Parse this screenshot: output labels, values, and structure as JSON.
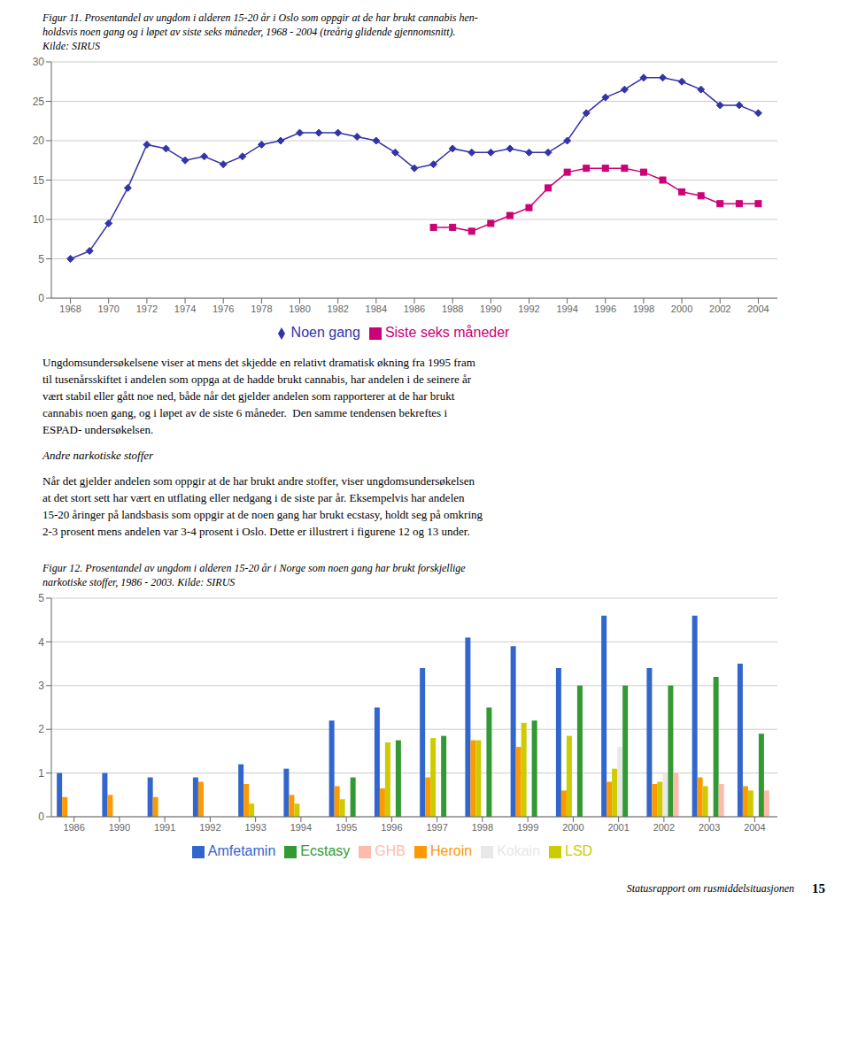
{
  "chart_data": [
    {
      "type": "line",
      "title": "Figur 11. Prosentandel av ungdom i alderen 15-20 år i Oslo som oppgir at de har brukt cannabis hen-\nholdsvis noen gang og i løpet av siste seks måneder, 1968 - 2004 (treårig glidende gjennomsnitt).",
      "subtitle": "Kilde: SIRUS",
      "x": [
        1968,
        1969,
        1970,
        1971,
        1972,
        1973,
        1974,
        1975,
        1976,
        1977,
        1978,
        1979,
        1980,
        1981,
        1982,
        1983,
        1984,
        1985,
        1986,
        1987,
        1988,
        1989,
        1990,
        1991,
        1992,
        1993,
        1994,
        1995,
        1996,
        1997,
        1998,
        1999,
        2000,
        2001,
        2002,
        2003,
        2004
      ],
      "series": [
        {
          "name": "Noen gang",
          "color": "#3333aa",
          "marker": "diamond",
          "values": [
            5.0,
            6.0,
            9.5,
            14.0,
            19.5,
            19.0,
            17.5,
            18.0,
            17.0,
            18.0,
            19.5,
            20.0,
            21.0,
            21.0,
            21.0,
            20.5,
            20.0,
            18.5,
            16.5,
            17.0,
            19.0,
            18.5,
            18.5,
            19.0,
            18.5,
            18.5,
            20.0,
            23.5,
            25.5,
            26.5,
            28.0,
            28.0,
            27.5,
            26.5,
            24.5,
            24.5,
            23.5
          ]
        },
        {
          "name": "Siste seks måneder",
          "color": "#cc0077",
          "marker": "square",
          "values": [
            null,
            null,
            null,
            null,
            null,
            null,
            null,
            null,
            null,
            null,
            null,
            null,
            null,
            null,
            null,
            null,
            null,
            null,
            null,
            9.0,
            9.0,
            8.5,
            9.5,
            10.5,
            11.5,
            14.0,
            16.0,
            16.5,
            16.5,
            16.5,
            16.0,
            15.0,
            13.5,
            13.0,
            12.0,
            12.0,
            12.0
          ]
        }
      ],
      "xlim": [
        1967,
        2005
      ],
      "xticks": [
        1968,
        1970,
        1972,
        1974,
        1976,
        1978,
        1980,
        1982,
        1984,
        1986,
        1988,
        1990,
        1992,
        1994,
        1996,
        1998,
        2000,
        2002,
        2004
      ],
      "ylim": [
        0,
        30
      ],
      "yticks": [
        0,
        5,
        10,
        15,
        20,
        25,
        30
      ],
      "grid": true,
      "legend": "bottom",
      "annotations": [
        "Ungdomsundersøkelsene viser at mens det skjedde en relativt dramatisk økning fra 1995 fram\ntil tusenårsskiftet i andelen som oppga at de hadde brukt cannabis, har andelen i de seinere år\nvært stabil eller gått noe ned, både når det gjelder andelen som rapporterer at de har brukt\ncannabis noen gang, og i løpet av de siste 6 måneder.  Den samme tendensen bekreftes i\nESPAD- undersøkelsen.",
        "Andre narkotiske stoffer",
        "Når det gjelder andelen som oppgir at de har brukt andre stoffer, viser ungdomsundersøkelsen\nat det stort sett har vært en utflating eller nedgang i de siste par år. Eksempelvis har andelen\n15-20 åringer på landsbasis som oppgir at de noen gang har brukt ecstasy, holdt seg på omkring\n2-3 prosent mens andelen var 3-4 prosent i Oslo. Dette er illustrert i figurene 12 og 13 under."
      ]
    },
    {
      "type": "bar",
      "title": "Figur 12. Prosentandel av ungdom i alderen 15-20 år i Norge som noen gang har brukt forskjellige\nnarkotiske stoffer, 1986 - 2003. Kilde: SIRUS",
      "categories": [
        "1986",
        "1990",
        "1991",
        "1992",
        "1993",
        "1994",
        "1995",
        "1996",
        "1997",
        "1998",
        "1999",
        "2000",
        "2001",
        "2002",
        "2003",
        "2004"
      ],
      "series": [
        {
          "name": "Amfetamin",
          "color": "#3366cc",
          "values": [
            1.0,
            1.0,
            0.9,
            0.9,
            1.2,
            1.1,
            2.2,
            2.5,
            3.4,
            4.1,
            3.9,
            3.4,
            4.6,
            3.4,
            4.6,
            3.5
          ]
        },
        {
          "name": "Heroin",
          "color": "#ff9900",
          "values": [
            0.45,
            0.5,
            0.45,
            0.8,
            0.75,
            0.5,
            0.7,
            0.65,
            0.9,
            1.75,
            1.6,
            0.6,
            0.8,
            0.75,
            0.9,
            0.7
          ]
        },
        {
          "name": "LSD",
          "color": "#cccc00",
          "values": [
            0.0,
            0.0,
            0.0,
            0.0,
            0.3,
            0.3,
            0.4,
            1.7,
            1.8,
            1.75,
            2.15,
            1.85,
            1.1,
            0.8,
            0.7,
            0.6
          ]
        },
        {
          "name": "Kokain",
          "color": "#e8e8e8",
          "values": [
            0.0,
            0.0,
            0.0,
            0.0,
            0.0,
            0.0,
            0.0,
            0.0,
            0.0,
            0.0,
            0.0,
            0.0,
            1.6,
            1.0,
            0.0,
            0.0
          ]
        },
        {
          "name": "Ecstasy",
          "color": "#339933",
          "values": [
            0.0,
            0.0,
            0.0,
            0.0,
            0.0,
            0.0,
            0.9,
            1.75,
            1.85,
            2.5,
            2.2,
            3.0,
            3.0,
            3.0,
            3.2,
            1.9
          ]
        },
        {
          "name": "GHB",
          "color": "#ffbbaa",
          "values": [
            0.0,
            0.0,
            0.0,
            0.0,
            0.0,
            0.0,
            0.0,
            0.0,
            0.0,
            0.0,
            0.0,
            0.0,
            0.0,
            1.0,
            0.75,
            0.6
          ]
        }
      ],
      "ylim": [
        0,
        5
      ],
      "yticks": [
        0,
        1,
        2,
        3,
        4,
        5
      ],
      "grid": true,
      "legend": "bottom",
      "annotations": [
        "Statusrapport om rusmiddelsituasjonen",
        "15"
      ]
    }
  ]
}
